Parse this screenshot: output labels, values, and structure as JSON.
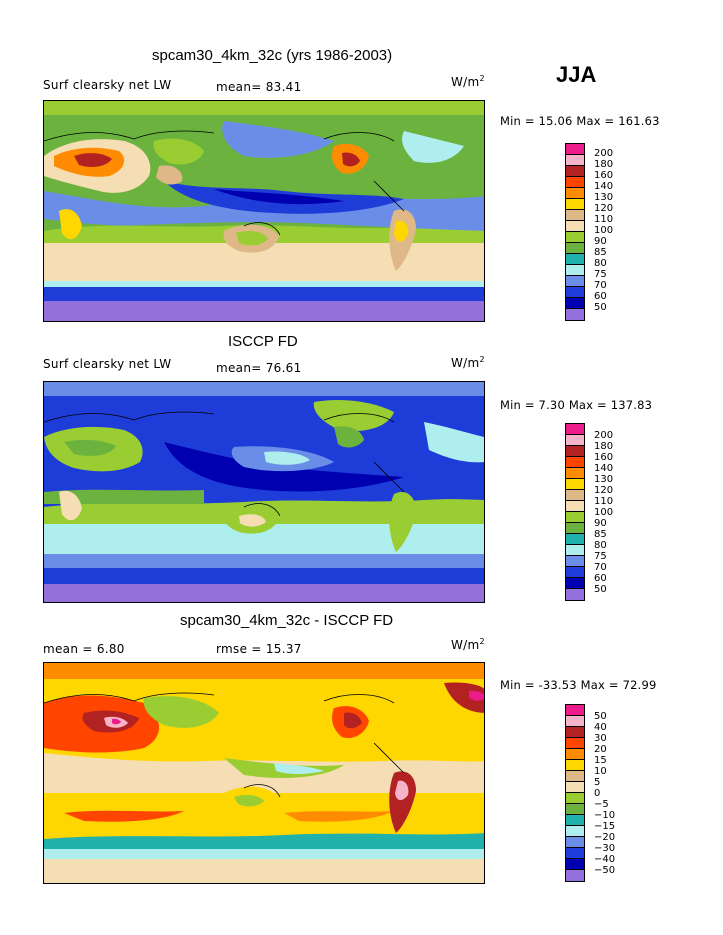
{
  "season": "JJA",
  "units": "W/m",
  "units_sup": "2",
  "panels": [
    {
      "title": "spcam30_4km_32c (yrs 1986-2003)",
      "variable": "Surf clearsky net LW",
      "stat": "mean=  83.41",
      "minmax": "Min =  15.06 Max = 161.63",
      "levels": [
        "200",
        "180",
        "160",
        "140",
        "130",
        "120",
        "110",
        "100",
        "90",
        "85",
        "80",
        "75",
        "70",
        "60",
        "50"
      ]
    },
    {
      "title": "ISCCP FD",
      "variable": "Surf clearsky net LW",
      "stat": "mean=  76.61",
      "minmax": "Min =   7.30 Max = 137.83",
      "levels": [
        "200",
        "180",
        "160",
        "140",
        "130",
        "120",
        "110",
        "100",
        "90",
        "85",
        "80",
        "75",
        "70",
        "60",
        "50"
      ]
    },
    {
      "title": "spcam30_4km_32c - ISCCP FD",
      "variable": "mean =   6.80",
      "stat": "rmse =  15.37",
      "minmax": "Min = -33.53 Max =  72.99",
      "levels": [
        "50",
        "40",
        "30",
        "20",
        "15",
        "10",
        "5",
        "0",
        "−5",
        "−10",
        "−15",
        "−20",
        "−30",
        "−40",
        "−50"
      ]
    }
  ],
  "palette": [
    "#ee1b8b",
    "#f7b3c8",
    "#b22222",
    "#ff4500",
    "#ff8c00",
    "#ffd700",
    "#deb887",
    "#f5deb3",
    "#9acd32",
    "#6bb33e",
    "#20b2aa",
    "#afeeee",
    "#6a8ee8",
    "#1e3cd8",
    "#0000b0",
    "#9370db"
  ]
}
